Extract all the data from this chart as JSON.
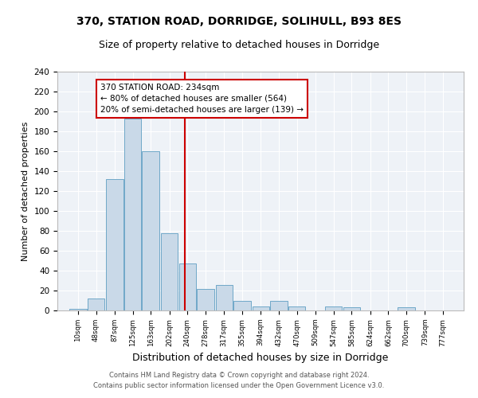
{
  "title1": "370, STATION ROAD, DORRIDGE, SOLIHULL, B93 8ES",
  "title2": "Size of property relative to detached houses in Dorridge",
  "xlabel": "Distribution of detached houses by size in Dorridge",
  "ylabel": "Number of detached properties",
  "bins": [
    10,
    48,
    87,
    125,
    163,
    202,
    240,
    278,
    317,
    355,
    394,
    432,
    470,
    509,
    547,
    585,
    624,
    662,
    700,
    739,
    777
  ],
  "bar_values": [
    2,
    12,
    132,
    193,
    160,
    78,
    47,
    22,
    26,
    10,
    4,
    10,
    4,
    0,
    4,
    3,
    0,
    0,
    3,
    0,
    0
  ],
  "bar_color": "#c9d9e8",
  "bar_edge_color": "#6fa8c8",
  "property_size": 234,
  "vline_color": "#cc0000",
  "annotation_text": "370 STATION ROAD: 234sqm\n← 80% of detached houses are smaller (564)\n20% of semi-detached houses are larger (139) →",
  "annotation_box_color": "#ffffff",
  "annotation_border_color": "#cc0000",
  "footer1": "Contains HM Land Registry data © Crown copyright and database right 2024.",
  "footer2": "Contains public sector information licensed under the Open Government Licence v3.0.",
  "bg_color": "#eef2f7",
  "ylim": [
    0,
    240
  ],
  "title1_fontsize": 10,
  "title2_fontsize": 9,
  "xlabel_fontsize": 9,
  "ylabel_fontsize": 8,
  "yticks": [
    0,
    20,
    40,
    60,
    80,
    100,
    120,
    140,
    160,
    180,
    200,
    220,
    240
  ]
}
